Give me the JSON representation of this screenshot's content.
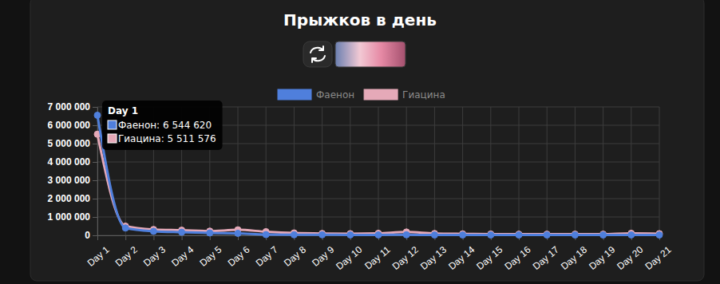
{
  "chart_data": {
    "type": "line",
    "title": "Прыжков в день",
    "categories": [
      "Day 1",
      "Day 2",
      "Day 3",
      "Day 4",
      "Day 5",
      "Day 6",
      "Day 7",
      "Day 8",
      "Day 9",
      "Day 10",
      "Day 11",
      "Day 12",
      "Day 13",
      "Day 14",
      "Day 15",
      "Day 16",
      "Day 17",
      "Day 18",
      "Day 19",
      "Day 20",
      "Day 21"
    ],
    "series": [
      {
        "name": "Фаенон",
        "color": "#4f7fdc",
        "marker": "circle",
        "values": [
          6544620,
          400000,
          220000,
          170000,
          130000,
          110000,
          40000,
          30000,
          30000,
          25000,
          25000,
          30000,
          20000,
          20000,
          20000,
          20000,
          20000,
          20000,
          20000,
          25000,
          20000
        ]
      },
      {
        "name": "Гиацина",
        "color": "#e5a9b8",
        "marker": "circle",
        "values": [
          5511576,
          500000,
          320000,
          280000,
          230000,
          300000,
          200000,
          130000,
          100000,
          90000,
          110000,
          180000,
          100000,
          80000,
          70000,
          60000,
          60000,
          60000,
          60000,
          110000,
          90000
        ]
      }
    ],
    "ylim": [
      0,
      7000000
    ],
    "yticks": [
      0,
      {
        "value": 1000000,
        "label": "1 000 000"
      },
      {
        "value": 2000000,
        "label": "2 000 000"
      },
      {
        "value": 3000000,
        "label": "3 000 000"
      },
      {
        "value": 4000000,
        "label": "4 000 000"
      },
      {
        "value": 5000000,
        "label": "5 000 000"
      },
      {
        "value": 6000000,
        "label": "6 000 000"
      },
      {
        "value": 7000000,
        "label": "7 000 000"
      }
    ],
    "grid": true,
    "legend": "top",
    "tooltip": {
      "title": "Day 1",
      "lines": [
        "Фаенон: 6 544 620",
        "Гиацина: 5 511 576"
      ]
    }
  }
}
